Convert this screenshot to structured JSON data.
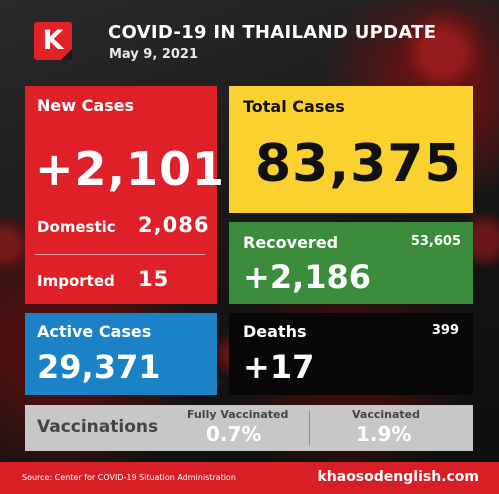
{
  "brand": {
    "logo_letter": "K",
    "logo_color": "#e32228"
  },
  "header": {
    "title": "COVID-19 IN THAILAND UPDATE",
    "date": "May 9, 2021"
  },
  "new_cases": {
    "label": "New Cases",
    "value": "+2,101",
    "domestic_label": "Domestic",
    "domestic_value": "2,086",
    "imported_label": "Imported",
    "imported_value": "15",
    "color": "#e02029"
  },
  "total_cases": {
    "label": "Total Cases",
    "value": "83,375",
    "color": "#fbd130"
  },
  "recovered": {
    "label": "Recovered",
    "total": "53,605",
    "value": "+2,186",
    "color": "#3b8c3b"
  },
  "active_cases": {
    "label": "Active Cases",
    "value": "29,371",
    "color": "#1c82c8"
  },
  "deaths": {
    "label": "Deaths",
    "total": "399",
    "value": "+17",
    "color": "#070707"
  },
  "vaccinations": {
    "label": "Vaccinations",
    "fully_label": "Fully Vaccinated",
    "fully_value": "0.7%",
    "vaccinated_label": "Vaccinated",
    "vaccinated_value": "1.9%",
    "color": "#c7c7c7"
  },
  "footer": {
    "source": "Source: Center for COVID-19 Situation Administration",
    "site": "khaosodenglish.com",
    "color": "#d81f26"
  }
}
